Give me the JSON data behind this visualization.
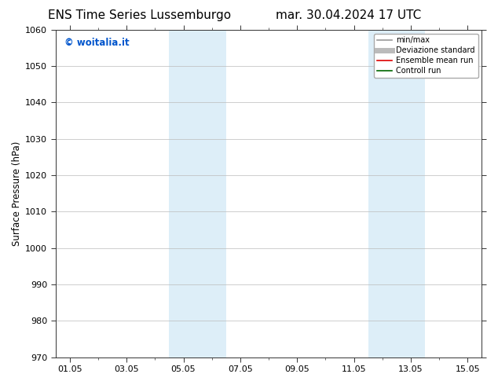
{
  "title": "ENS Time Series Lussemburgo",
  "title_right": "mar. 30.04.2024 17 UTC",
  "ylabel": "Surface Pressure (hPa)",
  "ylim": [
    970,
    1060
  ],
  "yticks": [
    970,
    980,
    990,
    1000,
    1010,
    1020,
    1030,
    1040,
    1050,
    1060
  ],
  "xtick_labels": [
    "01.05",
    "03.05",
    "05.05",
    "07.05",
    "09.05",
    "11.05",
    "13.05",
    "15.05"
  ],
  "xtick_positions": [
    0,
    2,
    4,
    6,
    8,
    10,
    12,
    14
  ],
  "xlim": [
    -0.5,
    14.5
  ],
  "shaded_bands": [
    {
      "x_start": 3.5,
      "x_end": 5.5,
      "color": "#ddeef8"
    },
    {
      "x_start": 10.5,
      "x_end": 12.5,
      "color": "#ddeef8"
    }
  ],
  "watermark_text": "© woitalia.it",
  "watermark_color": "#0055cc",
  "legend_entries": [
    {
      "label": "min/max",
      "color": "#999999",
      "lw": 1.2,
      "style": "solid"
    },
    {
      "label": "Deviazione standard",
      "color": "#bbbbbb",
      "lw": 5,
      "style": "solid"
    },
    {
      "label": "Ensemble mean run",
      "color": "#dd0000",
      "lw": 1.2,
      "style": "solid"
    },
    {
      "label": "Controll run",
      "color": "#006600",
      "lw": 1.2,
      "style": "solid"
    }
  ],
  "bg_color": "#ffffff",
  "grid_color": "#bbbbbb",
  "title_fontsize": 11,
  "tick_fontsize": 8,
  "ylabel_fontsize": 8.5,
  "watermark_fontsize": 8.5,
  "legend_fontsize": 7
}
